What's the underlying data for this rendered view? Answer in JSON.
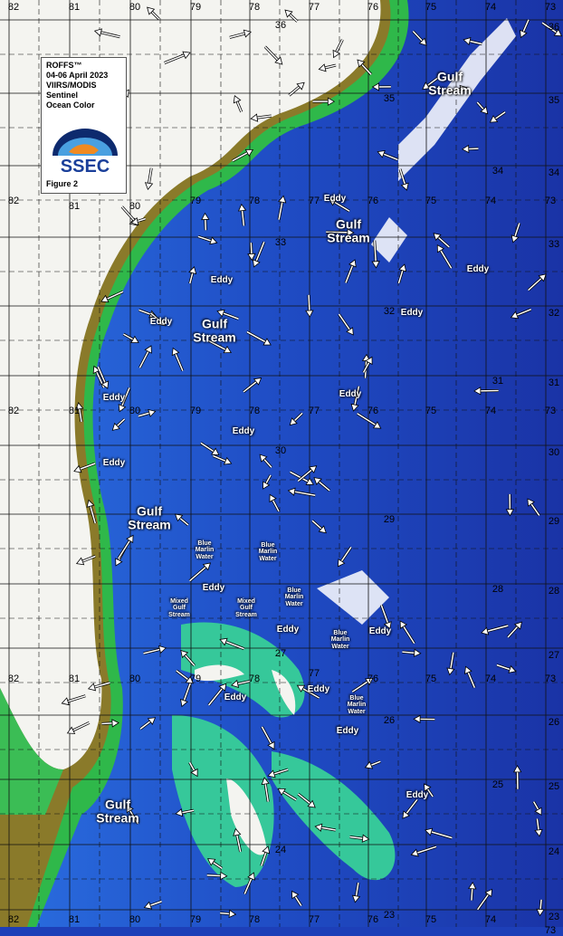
{
  "legend": {
    "lines": [
      "ROFFS™",
      "04-06 April 2023",
      "VIIRS/MODIS",
      "Sentinel",
      "Ocean Color"
    ],
    "logo_text": "SSEC",
    "figure": "Figure 2"
  },
  "grid": {
    "latitudes": [
      "36",
      "35",
      "34",
      "33",
      "32",
      "31",
      "30",
      "29",
      "28",
      "27",
      "26",
      "25",
      "24",
      "23"
    ],
    "longitudes": [
      "82",
      "81",
      "80",
      "79",
      "78",
      "77",
      "76",
      "75",
      "74",
      "73"
    ]
  },
  "annotations": {
    "gulf_stream": [
      "Gulf Stream",
      "Gulf Stream",
      "Gulf Stream",
      "Gulf Stream",
      "Gulf Stream"
    ],
    "eddy": [
      "Eddy",
      "Eddy",
      "Eddy",
      "Eddy",
      "Eddy",
      "Eddy",
      "Eddy",
      "Eddy",
      "Eddy",
      "Eddy",
      "Eddy",
      "Eddy",
      "Eddy",
      "Eddy",
      "Eddy",
      "Eddy"
    ],
    "blue_marlin": [
      "Blue Marlin Water",
      "Blue Marlin Water",
      "Blue Marlin Water",
      "Blue Marlin Water",
      "Blue Marlin Water"
    ],
    "mixed": [
      "Mixed Gulf Stream",
      "Mixed Gulf Stream"
    ]
  },
  "colors": {
    "land": "#f4f4f0",
    "shelf": "#2fb84a",
    "coast": "#8a7a2a",
    "ocean_deep": "#1a2fa8",
    "ocean_mid": "#2a62d8",
    "shallow": "#3cc8a0"
  }
}
